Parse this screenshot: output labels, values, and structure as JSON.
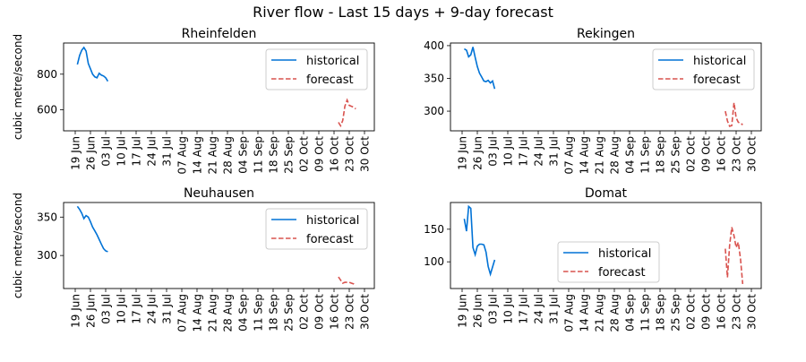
{
  "title": "River flow - Last 15 days + 9-day forecast",
  "colors": {
    "historical": "#0072d6",
    "forecast": "#d9534f"
  },
  "chart_data": [
    {
      "type": "line",
      "title": "Rheinfelden",
      "ylabel": "cubic metre/second",
      "xticks": [
        "19 Jun",
        "26 Jun",
        "03 Jul",
        "10 Jul",
        "17 Jul",
        "24 Jul",
        "31 Jul",
        "07 Aug",
        "14 Aug",
        "21 Aug",
        "28 Aug",
        "04 Sep",
        "11 Sep",
        "18 Sep",
        "25 Sep",
        "02 Oct",
        "09 Oct",
        "16 Oct",
        "23 Oct",
        "30 Oct"
      ],
      "yticks": [
        600,
        800
      ],
      "ylim": [
        482,
        975
      ],
      "legend": "upper right",
      "series": [
        {
          "name": "historical",
          "style": "solid",
          "start": "06-20",
          "values": [
            855,
            905,
            935,
            950,
            930,
            860,
            830,
            800,
            785,
            780,
            805,
            795,
            790,
            780,
            760
          ]
        },
        {
          "name": "forecast",
          "style": "dashed",
          "start": "10-18",
          "values": [
            530,
            510,
            540,
            620,
            655,
            625,
            620,
            615,
            605
          ]
        }
      ]
    },
    {
      "type": "line",
      "title": "Rekingen",
      "ylabel": "",
      "xticks": [
        "19 Jun",
        "26 Jun",
        "03 Jul",
        "10 Jul",
        "17 Jul",
        "24 Jul",
        "31 Jul",
        "07 Aug",
        "14 Aug",
        "21 Aug",
        "28 Aug",
        "04 Sep",
        "11 Sep",
        "18 Sep",
        "25 Sep",
        "02 Oct",
        "09 Oct",
        "16 Oct",
        "23 Oct",
        "30 Oct"
      ],
      "yticks": [
        300,
        350,
        400
      ],
      "ylim": [
        270,
        404
      ],
      "legend": "upper right",
      "series": [
        {
          "name": "historical",
          "style": "solid",
          "start": "06-20",
          "values": [
            395,
            393,
            383,
            386,
            398,
            382,
            368,
            358,
            352,
            346,
            345,
            347,
            343,
            346,
            334
          ]
        },
        {
          "name": "forecast",
          "style": "dashed",
          "start": "10-18",
          "values": [
            300,
            285,
            277,
            278,
            313,
            290,
            283,
            282,
            279
          ]
        }
      ]
    },
    {
      "type": "line",
      "title": "Neuhausen",
      "ylabel": "cubic metre/second",
      "xticks": [
        "19 Jun",
        "26 Jun",
        "03 Jul",
        "10 Jul",
        "17 Jul",
        "24 Jul",
        "31 Jul",
        "07 Aug",
        "14 Aug",
        "21 Aug",
        "28 Aug",
        "04 Sep",
        "11 Sep",
        "18 Sep",
        "25 Sep",
        "02 Oct",
        "09 Oct",
        "16 Oct",
        "23 Oct",
        "30 Oct"
      ],
      "yticks": [
        300,
        350
      ],
      "ylim": [
        257,
        369
      ],
      "legend": "upper right",
      "series": [
        {
          "name": "historical",
          "style": "solid",
          "start": "06-20",
          "values": [
            364,
            360,
            355,
            348,
            352,
            350,
            344,
            337,
            332,
            327,
            321,
            315,
            309,
            306,
            305
          ]
        },
        {
          "name": "forecast",
          "style": "dashed",
          "start": "10-18",
          "values": [
            272,
            268,
            264,
            265,
            265,
            265,
            264,
            263,
            261
          ]
        }
      ]
    },
    {
      "type": "line",
      "title": "Domat",
      "ylabel": "",
      "xticks": [
        "19 Jun",
        "26 Jun",
        "03 Jul",
        "10 Jul",
        "17 Jul",
        "24 Jul",
        "31 Jul",
        "07 Aug",
        "14 Aug",
        "21 Aug",
        "28 Aug",
        "04 Sep",
        "11 Sep",
        "18 Sep",
        "25 Sep",
        "02 Oct",
        "09 Oct",
        "16 Oct",
        "23 Oct",
        "30 Oct"
      ],
      "yticks": [
        100,
        150
      ],
      "ylim": [
        59,
        191
      ],
      "legend": "lower center",
      "series": [
        {
          "name": "historical",
          "style": "solid",
          "start": "06-20",
          "values": [
            166,
            147,
            185,
            182,
            122,
            111,
            124,
            127,
            127,
            126,
            115,
            93,
            81,
            92,
            103
          ]
        },
        {
          "name": "forecast",
          "style": "dashed",
          "start": "10-18",
          "values": [
            120,
            76,
            125,
            153,
            140,
            122,
            130,
            104,
            66
          ]
        }
      ]
    }
  ]
}
